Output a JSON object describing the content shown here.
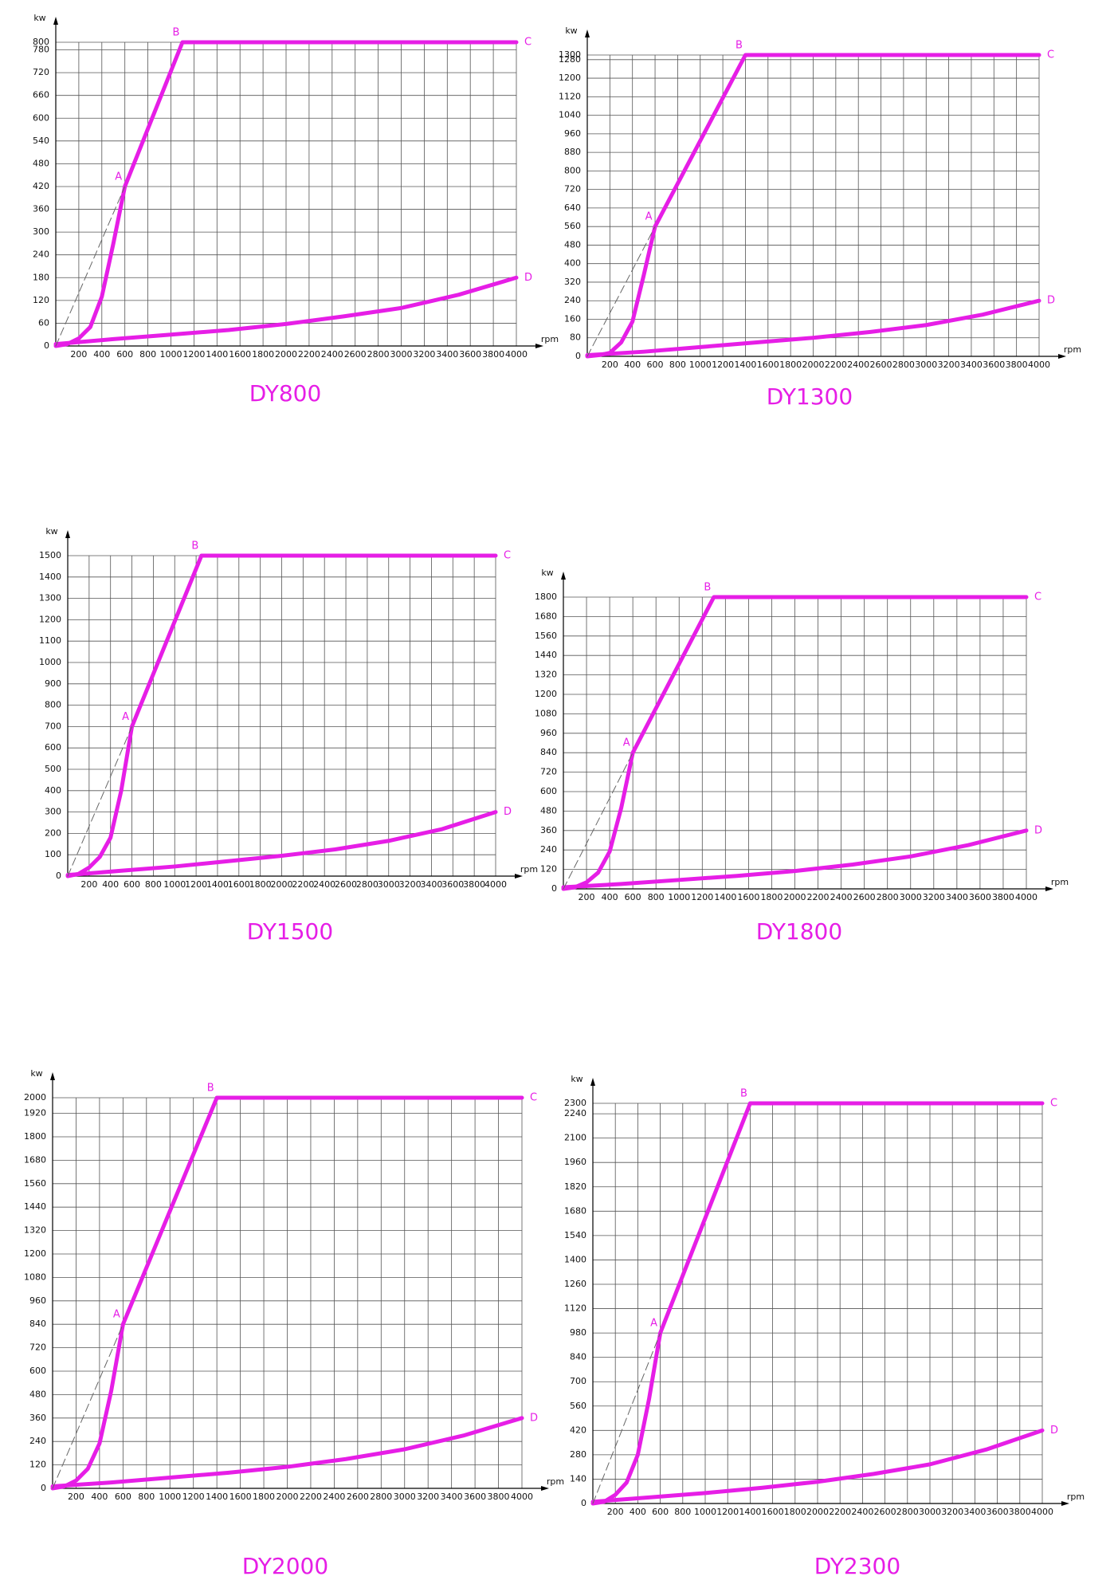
{
  "chart_data": [
    {
      "type": "line",
      "title": "DY800",
      "x_label": "rpm",
      "y_label": "kw",
      "color": "#e61ee6",
      "grid": true,
      "xlim": [
        0,
        4000
      ],
      "xticks": [
        200,
        400,
        600,
        800,
        1000,
        1200,
        1400,
        1600,
        1800,
        2000,
        2200,
        2400,
        2600,
        2800,
        3000,
        3200,
        3400,
        3600,
        3800,
        4000
      ],
      "ylim": [
        0,
        800
      ],
      "yticks": [
        0,
        60,
        120,
        180,
        240,
        300,
        360,
        420,
        480,
        540,
        600,
        660,
        720,
        780,
        800
      ],
      "series": [
        {
          "x": [
            0,
            100,
            200,
            300,
            400,
            500,
            600,
            1100,
            4000
          ],
          "values": [
            0,
            5,
            20,
            50,
            130,
            270,
            420,
            800,
            800
          ]
        },
        {
          "x": [
            0,
            500,
            1000,
            1500,
            2000,
            2500,
            3000,
            3500,
            4000
          ],
          "values": [
            5,
            18,
            30,
            42,
            58,
            78,
            100,
            135,
            180
          ]
        },
        {
          "x": [
            0,
            600
          ],
          "values": [
            0,
            420
          ],
          "dashed": true
        }
      ],
      "points": [
        {
          "label": "A",
          "x": 600,
          "y": 420
        },
        {
          "label": "B",
          "x": 1100,
          "y": 800
        },
        {
          "label": "C",
          "x": 4000,
          "y": 800
        },
        {
          "label": "D",
          "x": 4000,
          "y": 180
        }
      ]
    },
    {
      "type": "line",
      "title": "DY1300",
      "x_label": "rpm",
      "y_label": "kw",
      "color": "#e61ee6",
      "grid": true,
      "xlim": [
        0,
        4000
      ],
      "xticks": [
        200,
        400,
        600,
        800,
        1000,
        1200,
        1400,
        1600,
        1800,
        2000,
        2200,
        2400,
        2600,
        2800,
        3000,
        3200,
        3400,
        3600,
        3800,
        4000
      ],
      "ylim": [
        0,
        1300
      ],
      "yticks": [
        0,
        80,
        160,
        240,
        320,
        400,
        480,
        560,
        640,
        720,
        800,
        880,
        960,
        1040,
        1120,
        1200,
        1280,
        1300
      ],
      "series": [
        {
          "x": [
            0,
            100,
            200,
            300,
            400,
            500,
            600,
            1400,
            4000
          ],
          "values": [
            0,
            5,
            15,
            60,
            150,
            350,
            560,
            1300,
            1300
          ]
        },
        {
          "x": [
            0,
            500,
            1000,
            1500,
            2000,
            2500,
            3000,
            3500,
            4000
          ],
          "values": [
            5,
            20,
            40,
            60,
            80,
            105,
            135,
            180,
            240
          ]
        },
        {
          "x": [
            0,
            600
          ],
          "values": [
            0,
            560
          ],
          "dashed": true
        }
      ],
      "points": [
        {
          "label": "A",
          "x": 600,
          "y": 560
        },
        {
          "label": "B",
          "x": 1400,
          "y": 1300
        },
        {
          "label": "C",
          "x": 4000,
          "y": 1300
        },
        {
          "label": "D",
          "x": 4000,
          "y": 240
        }
      ]
    },
    {
      "type": "line",
      "title": "DY1500",
      "x_label": "rpm",
      "y_label": "kw",
      "color": "#e61ee6",
      "grid": true,
      "xlim": [
        0,
        4000
      ],
      "xticks": [
        200,
        400,
        600,
        800,
        1000,
        1200,
        1400,
        1600,
        1800,
        2000,
        2200,
        2400,
        2600,
        2800,
        3000,
        3200,
        3400,
        3600,
        3800,
        4000
      ],
      "ylim": [
        0,
        1500
      ],
      "yticks": [
        0,
        100,
        200,
        300,
        400,
        500,
        600,
        700,
        800,
        900,
        1000,
        1100,
        1200,
        1300,
        1400,
        1500
      ],
      "series": [
        {
          "x": [
            0,
            100,
            200,
            300,
            400,
            500,
            600,
            1250,
            4000
          ],
          "values": [
            0,
            10,
            40,
            90,
            180,
            400,
            700,
            1500,
            1500
          ]
        },
        {
          "x": [
            0,
            500,
            1000,
            1500,
            2000,
            2500,
            3000,
            3500,
            4000
          ],
          "values": [
            5,
            25,
            45,
            70,
            95,
            125,
            165,
            220,
            300
          ]
        },
        {
          "x": [
            0,
            600
          ],
          "values": [
            0,
            700
          ],
          "dashed": true
        }
      ],
      "points": [
        {
          "label": "A",
          "x": 600,
          "y": 700
        },
        {
          "label": "B",
          "x": 1250,
          "y": 1500
        },
        {
          "label": "C",
          "x": 4000,
          "y": 1500
        },
        {
          "label": "D",
          "x": 4000,
          "y": 300
        }
      ]
    },
    {
      "type": "line",
      "title": "DY1800",
      "x_label": "rpm",
      "y_label": "kw",
      "color": "#e61ee6",
      "grid": true,
      "xlim": [
        0,
        4000
      ],
      "xticks": [
        200,
        400,
        600,
        800,
        1000,
        1200,
        1400,
        1600,
        1800,
        2000,
        2200,
        2400,
        2600,
        2800,
        3000,
        3200,
        3400,
        3600,
        3800,
        4000
      ],
      "ylim": [
        0,
        1800
      ],
      "yticks": [
        0,
        120,
        240,
        360,
        480,
        600,
        720,
        840,
        960,
        1080,
        1200,
        1320,
        1440,
        1560,
        1680,
        1800
      ],
      "series": [
        {
          "x": [
            0,
            100,
            200,
            300,
            400,
            500,
            600,
            1300,
            4000
          ],
          "values": [
            0,
            10,
            40,
            100,
            230,
            500,
            840,
            1800,
            1800
          ]
        },
        {
          "x": [
            0,
            500,
            1000,
            1500,
            2000,
            2500,
            3000,
            3500,
            4000
          ],
          "values": [
            10,
            30,
            55,
            80,
            110,
            150,
            200,
            270,
            360
          ]
        },
        {
          "x": [
            0,
            600
          ],
          "values": [
            0,
            840
          ],
          "dashed": true
        }
      ],
      "points": [
        {
          "label": "A",
          "x": 600,
          "y": 840
        },
        {
          "label": "B",
          "x": 1300,
          "y": 1800
        },
        {
          "label": "C",
          "x": 4000,
          "y": 1800
        },
        {
          "label": "D",
          "x": 4000,
          "y": 360
        }
      ]
    },
    {
      "type": "line",
      "title": "DY2000",
      "x_label": "rpm",
      "y_label": "kw",
      "color": "#e61ee6",
      "grid": true,
      "xlim": [
        0,
        4000
      ],
      "xticks": [
        200,
        400,
        600,
        800,
        1000,
        1200,
        1400,
        1600,
        1800,
        2000,
        2200,
        2400,
        2600,
        2800,
        3000,
        3200,
        3400,
        3600,
        3800,
        4000
      ],
      "ylim": [
        0,
        2000
      ],
      "yticks": [
        0,
        120,
        240,
        360,
        480,
        600,
        720,
        840,
        960,
        1080,
        1200,
        1320,
        1440,
        1560,
        1680,
        1800,
        1920,
        2000
      ],
      "series": [
        {
          "x": [
            0,
            100,
            200,
            300,
            400,
            500,
            600,
            1400,
            4000
          ],
          "values": [
            0,
            10,
            40,
            100,
            230,
            500,
            840,
            2000,
            2000
          ]
        },
        {
          "x": [
            0,
            500,
            1000,
            1500,
            2000,
            2500,
            3000,
            3500,
            4000
          ],
          "values": [
            10,
            30,
            55,
            80,
            110,
            150,
            200,
            270,
            360
          ]
        },
        {
          "x": [
            0,
            600
          ],
          "values": [
            0,
            840
          ],
          "dashed": true
        }
      ],
      "points": [
        {
          "label": "A",
          "x": 600,
          "y": 840
        },
        {
          "label": "B",
          "x": 1400,
          "y": 2000
        },
        {
          "label": "C",
          "x": 4000,
          "y": 2000
        },
        {
          "label": "D",
          "x": 4000,
          "y": 360
        }
      ]
    },
    {
      "type": "line",
      "title": "DY2300",
      "x_label": "rpm",
      "y_label": "kw",
      "color": "#e61ee6",
      "grid": true,
      "xlim": [
        0,
        4000
      ],
      "xticks": [
        200,
        400,
        600,
        800,
        1000,
        1200,
        1400,
        1600,
        1800,
        2000,
        2200,
        2400,
        2600,
        2800,
        3000,
        3200,
        3400,
        3600,
        3800,
        4000
      ],
      "ylim": [
        0,
        2300
      ],
      "yticks": [
        0,
        140,
        280,
        420,
        560,
        700,
        840,
        980,
        1120,
        1260,
        1400,
        1540,
        1680,
        1820,
        1960,
        2100,
        2240,
        2300
      ],
      "series": [
        {
          "x": [
            0,
            100,
            200,
            300,
            400,
            500,
            600,
            1400,
            4000
          ],
          "values": [
            0,
            10,
            50,
            120,
            280,
            600,
            980,
            2300,
            2300
          ]
        },
        {
          "x": [
            0,
            500,
            1000,
            1500,
            2000,
            2500,
            3000,
            3500,
            4000
          ],
          "values": [
            10,
            35,
            60,
            90,
            125,
            170,
            225,
            310,
            420
          ]
        },
        {
          "x": [
            0,
            600
          ],
          "values": [
            0,
            980
          ],
          "dashed": true
        }
      ],
      "points": [
        {
          "label": "A",
          "x": 600,
          "y": 980
        },
        {
          "label": "B",
          "x": 1400,
          "y": 2300
        },
        {
          "label": "C",
          "x": 4000,
          "y": 2300
        },
        {
          "label": "D",
          "x": 4000,
          "y": 420
        }
      ]
    }
  ]
}
